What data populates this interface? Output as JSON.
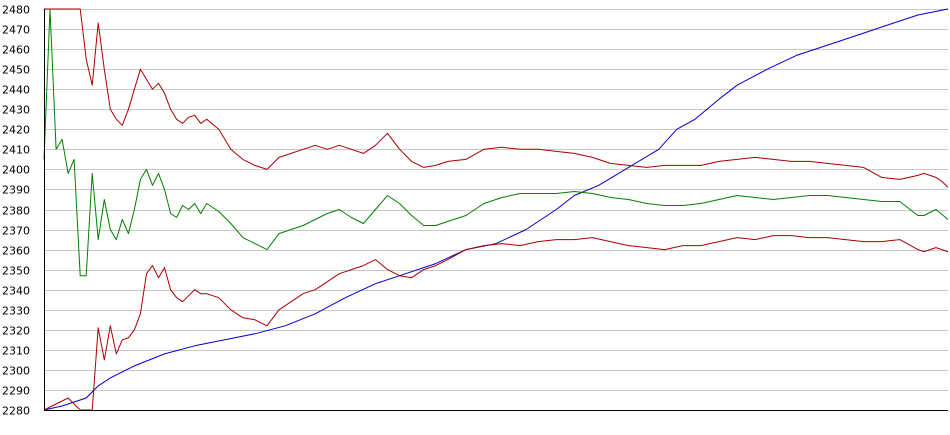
{
  "chart_data": {
    "type": "line",
    "title": "",
    "xlabel": "",
    "ylabel": "",
    "ylim": [
      2280,
      2480
    ],
    "xlim": [
      0,
      150
    ],
    "yticks": [
      2280,
      2290,
      2300,
      2310,
      2320,
      2330,
      2340,
      2350,
      2360,
      2370,
      2380,
      2390,
      2400,
      2410,
      2420,
      2430,
      2440,
      2450,
      2460,
      2470,
      2480
    ],
    "grid": true,
    "legend": "none",
    "series": [
      {
        "color": "#0000cc",
        "role": "price",
        "x": [
          0,
          3,
          5,
          7,
          9,
          11,
          15,
          20,
          25,
          30,
          35,
          40,
          45,
          50,
          55,
          60,
          65,
          70,
          75,
          80,
          85,
          88,
          92,
          97,
          102,
          105,
          108,
          112,
          115,
          120,
          125,
          130,
          135,
          140,
          145,
          150
        ],
        "values": [
          2280,
          2282,
          2284,
          2286,
          2292,
          2296,
          2302,
          2308,
          2312,
          2315,
          2318,
          2322,
          2328,
          2336,
          2343,
          2348,
          2353,
          2360,
          2363,
          2370,
          2380,
          2387,
          2392,
          2401,
          2410,
          2420,
          2425,
          2435,
          2442,
          2450,
          2457,
          2462,
          2467,
          2472,
          2477,
          2480
        ]
      },
      {
        "color": "#008000",
        "role": "middle-band",
        "x": [
          0,
          1,
          2,
          3,
          4,
          5,
          6,
          7,
          8,
          9,
          10,
          11,
          12,
          13,
          14,
          15,
          16,
          17,
          18,
          19,
          20,
          21,
          22,
          23,
          24,
          25,
          26,
          27,
          29,
          31,
          33,
          35,
          37,
          39,
          41,
          43,
          45,
          47,
          49,
          51,
          53,
          55,
          57,
          59,
          61,
          63,
          65,
          67,
          70,
          73,
          76,
          79,
          82,
          85,
          88,
          91,
          94,
          97,
          100,
          103,
          106,
          109,
          112,
          115,
          118,
          121,
          124,
          127,
          130,
          133,
          136,
          139,
          142,
          145,
          146,
          148,
          150
        ],
        "values": [
          2405,
          2480,
          2410,
          2415,
          2398,
          2405,
          2347,
          2347,
          2398,
          2365,
          2385,
          2370,
          2365,
          2375,
          2368,
          2380,
          2395,
          2400,
          2392,
          2398,
          2390,
          2378,
          2376,
          2382,
          2380,
          2383,
          2378,
          2383,
          2379,
          2373,
          2366,
          2363,
          2360,
          2368,
          2370,
          2372,
          2375,
          2378,
          2380,
          2376,
          2373,
          2380,
          2387,
          2383,
          2377,
          2372,
          2372,
          2374,
          2377,
          2383,
          2386,
          2388,
          2388,
          2388,
          2389,
          2388,
          2386,
          2385,
          2383,
          2382,
          2382,
          2383,
          2385,
          2387,
          2386,
          2385,
          2386,
          2387,
          2387,
          2386,
          2385,
          2384,
          2384,
          2377,
          2377,
          2380,
          2375
        ]
      },
      {
        "color": "#aa0000",
        "role": "upper-band",
        "x": [
          0,
          2,
          3,
          4,
          5,
          6,
          7,
          8,
          9,
          10,
          11,
          12,
          13,
          14,
          15,
          16,
          17,
          18,
          19,
          20,
          21,
          22,
          23,
          24,
          25,
          26,
          27,
          29,
          31,
          33,
          35,
          37,
          39,
          41,
          43,
          45,
          47,
          49,
          51,
          53,
          55,
          57,
          59,
          61,
          63,
          65,
          67,
          70,
          73,
          76,
          79,
          82,
          85,
          88,
          91,
          94,
          97,
          100,
          103,
          106,
          109,
          112,
          115,
          118,
          121,
          124,
          127,
          130,
          133,
          136,
          139,
          142,
          145,
          146,
          148,
          149,
          150
        ],
        "values": [
          2480,
          2480,
          2480,
          2480,
          2480,
          2480,
          2455,
          2442,
          2473,
          2450,
          2430,
          2425,
          2422,
          2430,
          2440,
          2450,
          2445,
          2440,
          2443,
          2438,
          2430,
          2425,
          2423,
          2426,
          2427,
          2423,
          2425,
          2420,
          2410,
          2405,
          2402,
          2400,
          2406,
          2408,
          2410,
          2412,
          2410,
          2412,
          2410,
          2408,
          2412,
          2418,
          2410,
          2404,
          2401,
          2402,
          2404,
          2405,
          2410,
          2411,
          2410,
          2410,
          2409,
          2408,
          2406,
          2403,
          2402,
          2401,
          2402,
          2402,
          2402,
          2404,
          2405,
          2406,
          2405,
          2404,
          2404,
          2403,
          2402,
          2401,
          2396,
          2395,
          2397,
          2398,
          2396,
          2394,
          2391
        ]
      },
      {
        "color": "#aa0000",
        "role": "lower-band",
        "x": [
          0,
          4,
          6,
          7,
          8,
          9,
          10,
          11,
          12,
          13,
          14,
          15,
          16,
          17,
          18,
          19,
          20,
          21,
          22,
          23,
          24,
          25,
          26,
          27,
          29,
          31,
          33,
          35,
          37,
          39,
          41,
          43,
          45,
          47,
          49,
          51,
          53,
          55,
          57,
          59,
          61,
          63,
          65,
          67,
          70,
          73,
          76,
          79,
          82,
          85,
          88,
          91,
          94,
          97,
          100,
          103,
          106,
          109,
          112,
          115,
          118,
          121,
          124,
          127,
          130,
          133,
          136,
          139,
          142,
          145,
          146,
          148,
          150
        ],
        "values": [
          2280,
          2286,
          2280,
          2280,
          2280,
          2321,
          2305,
          2322,
          2308,
          2315,
          2316,
          2320,
          2328,
          2348,
          2352,
          2346,
          2351,
          2340,
          2336,
          2334,
          2337,
          2340,
          2338,
          2338,
          2336,
          2330,
          2326,
          2325,
          2322,
          2330,
          2334,
          2338,
          2340,
          2344,
          2348,
          2350,
          2352,
          2355,
          2350,
          2347,
          2346,
          2350,
          2352,
          2355,
          2360,
          2362,
          2363,
          2362,
          2364,
          2365,
          2365,
          2366,
          2364,
          2362,
          2361,
          2360,
          2362,
          2362,
          2364,
          2366,
          2365,
          2367,
          2367,
          2366,
          2366,
          2365,
          2364,
          2364,
          2365,
          2360,
          2359,
          2361,
          2359
        ]
      }
    ]
  }
}
